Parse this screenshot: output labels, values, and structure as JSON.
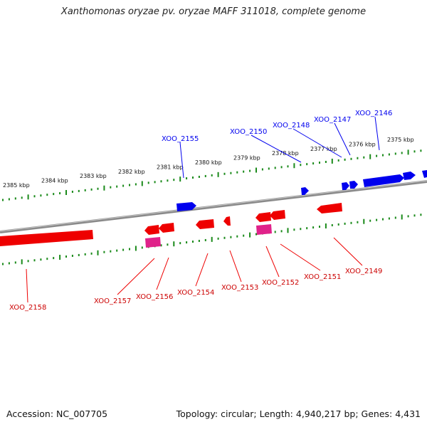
{
  "title": "Xanthomonas oryzae pv. oryzae MAFF 311018, complete genome",
  "footer": {
    "accession": "Accession: NC_007705",
    "summary": "Topology: circular; Length: 4,940,217 bp; Genes: 4,431"
  },
  "colors": {
    "forward": "#0000ee",
    "reverse": "#ee0000",
    "reverse_alt": "#e0228a",
    "ticks": "#1a8a1a",
    "backbone": "#8a8a8a"
  },
  "kbp_labels": [
    "2385 kbp",
    "2384 kbp",
    "2383 kbp",
    "2382 kbp",
    "2381 kbp",
    "2380 kbp",
    "2379 kbp",
    "2378 kbp",
    "2377 kbp",
    "2376 kbp",
    "2375 kbp"
  ],
  "forward_genes": [
    "XOO_2155",
    "XOO_2150",
    "XOO_2148",
    "XOO_2147",
    "XOO_2146"
  ],
  "reverse_genes": [
    "XOO_2158",
    "XOO_2157",
    "XOO_2156",
    "XOO_2154",
    "XOO_2153",
    "XOO_2152",
    "XOO_2151",
    "XOO_2149"
  ]
}
